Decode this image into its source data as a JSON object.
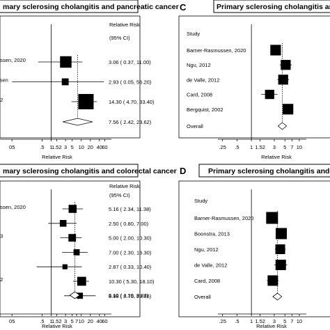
{
  "chart_data": [
    {
      "panel": "",
      "type": "forest",
      "title": "mary sclerosing cholangitis and pancreatic cancer",
      "header": "Relative Risk",
      "subheader": "(95% CI)",
      "study_header": "",
      "xlabel": "Relative Risk",
      "xscale": "log",
      "ticks": [
        "05",
        ".5",
        "1",
        "1.52",
        "3",
        "5",
        "10",
        "20",
        "40",
        "60"
      ],
      "tick_values": [
        0.05,
        0.5,
        1,
        1.52,
        3,
        5,
        10,
        20,
        40,
        60
      ],
      "studies": [
        {
          "label": "ussen, 2020",
          "rr": 3.06,
          "lo": 0.37,
          "hi": 11.0,
          "ci_text": "3.06 ( 0.37, 11.00)",
          "weight": 0.75
        },
        {
          "label": "ssen",
          "rr": 2.93,
          "lo": 0.05,
          "hi": 56.2,
          "ci_text": "2.93 ( 0.05, 56.20)",
          "weight": 0.45
        },
        {
          "label": "02",
          "rr": 14.3,
          "lo": 4.7,
          "hi": 33.4,
          "ci_text": "14.30 ( 4.70, 33.40)",
          "weight": 1.0
        }
      ],
      "overall": {
        "label": "",
        "rr": 7.56,
        "lo": 2.42,
        "hi": 23.62,
        "ci_text": "7.56 ( 2.42, 23.62)"
      }
    },
    {
      "panel": "C",
      "type": "forest",
      "title": "Primary sclerosing cholangitis and total c",
      "header": "",
      "subheader": "",
      "study_header": "Study",
      "xlabel": "Relative Risk",
      "xscale": "log",
      "ticks": [
        ".25",
        ".5",
        "1",
        "1.52",
        "3",
        "5",
        "7",
        "10"
      ],
      "tick_values": [
        0.25,
        0.5,
        1,
        1.52,
        3,
        5,
        7,
        10
      ],
      "studies": [
        {
          "label": "Barner-Rasmussen, 2020",
          "rr": 3.2,
          "lo": 2.6,
          "hi": 4.0,
          "ci_text": "",
          "weight": 0.8
        },
        {
          "label": "Ngu, 2012",
          "rr": 5.2,
          "lo": 3.9,
          "hi": 6.9,
          "ci_text": "",
          "weight": 0.75
        },
        {
          "label": "de Valle, 2012",
          "rr": 4.6,
          "lo": 3.5,
          "hi": 6.1,
          "ci_text": "",
          "weight": 0.75
        },
        {
          "label": "Card, 2008",
          "rr": 2.4,
          "lo": 1.6,
          "hi": 3.5,
          "ci_text": "",
          "weight": 0.7
        },
        {
          "label": "Bergquist, 2002",
          "rr": 5.8,
          "lo": 4.5,
          "hi": 7.4,
          "ci_text": "",
          "weight": 0.8
        }
      ],
      "overall": {
        "label": "Overall",
        "rr": 4.4,
        "lo": 3.6,
        "hi": 5.4,
        "ci_text": ""
      }
    },
    {
      "panel": "",
      "type": "forest",
      "title": "mary sclerosing cholangitis and colorectal cancer",
      "header": "Relative Risk",
      "subheader": "(95% CI)",
      "study_header": "",
      "xlabel": "Relative Risk",
      "xscale": "log",
      "ticks": [
        "05",
        ".5",
        "1",
        "1.52",
        "3",
        "5",
        "7",
        "10",
        "20",
        "40",
        "60"
      ],
      "tick_values": [
        0.05,
        0.5,
        1,
        1.52,
        3,
        5,
        7,
        10,
        20,
        40,
        60
      ],
      "studies": [
        {
          "label": "ussen, 2020",
          "rr": 5.16,
          "lo": 2.34,
          "hi": 11.38,
          "ci_text": "5.16 ( 2.34, 11.38)",
          "weight": 0.72
        },
        {
          "label": "",
          "rr": 2.5,
          "lo": 0.8,
          "hi": 7.0,
          "ci_text": "2.50 ( 0.80, 7.00)",
          "weight": 0.6
        },
        {
          "label": "13",
          "rr": 5.0,
          "lo": 2.0,
          "hi": 10.3,
          "ci_text": "5.00 ( 2.00, 10.30)",
          "weight": 0.68
        },
        {
          "label": "",
          "rr": 7.0,
          "lo": 2.3,
          "hi": 16.3,
          "ci_text": "7.00 ( 2.30, 16.30)",
          "weight": 0.55
        },
        {
          "label": "e",
          "rr": 2.87,
          "lo": 0.33,
          "hi": 10.4,
          "ci_text": "2.87 ( 0.33, 10.40)",
          "weight": 0.45
        },
        {
          "label": "02",
          "rr": 10.3,
          "lo": 5.3,
          "hi": 18.1,
          "ci_text": "10.30 ( 5.30, 18.10)",
          "weight": 0.8
        },
        {
          "label": "",
          "rr": 8.98,
          "lo": 2.7,
          "hi": 29.86,
          "ci_text": "8.98 ( 2.70, 29.86)",
          "weight": 0.55
        }
      ],
      "overall": {
        "label": "",
        "rr": 6.1,
        "lo": 4.19,
        "hi": 8.87,
        "ci_text": "6.10 ( 4.19, 8.87)"
      }
    },
    {
      "panel": "D",
      "type": "forest",
      "title": "Primary sclerosing cholangitis and all-cause",
      "header": "",
      "subheader": "",
      "study_header": "Study",
      "xlabel": "Relative Risk",
      "xscale": "log",
      "ticks": [
        ".25",
        ".5",
        "1",
        "1.52",
        "3",
        "5",
        "7",
        "10"
      ],
      "tick_values": [
        0.25,
        0.5,
        1,
        1.52,
        3,
        5,
        7,
        10
      ],
      "studies": [
        {
          "label": "Barner-Rasmussen, 2020",
          "rr": 2.7,
          "lo": 2.2,
          "hi": 3.3,
          "ci_text": "",
          "weight": 0.85
        },
        {
          "label": "Boonstra, 2013",
          "rr": 4.2,
          "lo": 3.2,
          "hi": 5.5,
          "ci_text": "",
          "weight": 0.8
        },
        {
          "label": "Ngu, 2012",
          "rr": 4.0,
          "lo": 3.1,
          "hi": 5.2,
          "ci_text": "",
          "weight": 0.7
        },
        {
          "label": "de Valle, 2012",
          "rr": 4.1,
          "lo": 3.0,
          "hi": 5.6,
          "ci_text": "",
          "weight": 0.75
        },
        {
          "label": "Card, 2008",
          "rr": 2.8,
          "lo": 2.1,
          "hi": 3.7,
          "ci_text": "",
          "weight": 0.75
        }
      ],
      "overall": {
        "label": "Overall",
        "rr": 3.5,
        "lo": 2.8,
        "hi": 4.3,
        "ci_text": ""
      }
    }
  ]
}
